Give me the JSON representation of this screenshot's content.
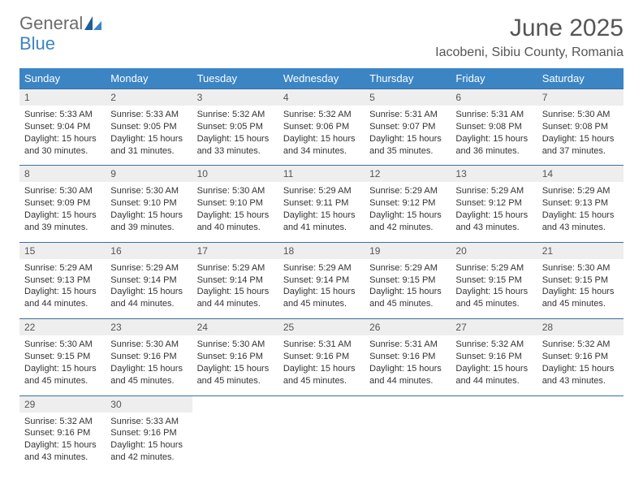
{
  "logo": {
    "general": "General",
    "blue": "Blue"
  },
  "title": "June 2025",
  "location": "Iacobeni, Sibiu County, Romania",
  "colors": {
    "header_bg": "#3b85c4",
    "header_text": "#ffffff",
    "daynum_bg": "#eeeeee",
    "border": "#3b6fa0",
    "text": "#333333",
    "title_text": "#555555",
    "logo_gray": "#6b6b6b",
    "logo_blue": "#3b85c4",
    "background": "#ffffff"
  },
  "day_headers": [
    "Sunday",
    "Monday",
    "Tuesday",
    "Wednesday",
    "Thursday",
    "Friday",
    "Saturday"
  ],
  "weeks": [
    [
      {
        "num": "1",
        "sunrise": "Sunrise: 5:33 AM",
        "sunset": "Sunset: 9:04 PM",
        "daylight1": "Daylight: 15 hours",
        "daylight2": "and 30 minutes."
      },
      {
        "num": "2",
        "sunrise": "Sunrise: 5:33 AM",
        "sunset": "Sunset: 9:05 PM",
        "daylight1": "Daylight: 15 hours",
        "daylight2": "and 31 minutes."
      },
      {
        "num": "3",
        "sunrise": "Sunrise: 5:32 AM",
        "sunset": "Sunset: 9:05 PM",
        "daylight1": "Daylight: 15 hours",
        "daylight2": "and 33 minutes."
      },
      {
        "num": "4",
        "sunrise": "Sunrise: 5:32 AM",
        "sunset": "Sunset: 9:06 PM",
        "daylight1": "Daylight: 15 hours",
        "daylight2": "and 34 minutes."
      },
      {
        "num": "5",
        "sunrise": "Sunrise: 5:31 AM",
        "sunset": "Sunset: 9:07 PM",
        "daylight1": "Daylight: 15 hours",
        "daylight2": "and 35 minutes."
      },
      {
        "num": "6",
        "sunrise": "Sunrise: 5:31 AM",
        "sunset": "Sunset: 9:08 PM",
        "daylight1": "Daylight: 15 hours",
        "daylight2": "and 36 minutes."
      },
      {
        "num": "7",
        "sunrise": "Sunrise: 5:30 AM",
        "sunset": "Sunset: 9:08 PM",
        "daylight1": "Daylight: 15 hours",
        "daylight2": "and 37 minutes."
      }
    ],
    [
      {
        "num": "8",
        "sunrise": "Sunrise: 5:30 AM",
        "sunset": "Sunset: 9:09 PM",
        "daylight1": "Daylight: 15 hours",
        "daylight2": "and 39 minutes."
      },
      {
        "num": "9",
        "sunrise": "Sunrise: 5:30 AM",
        "sunset": "Sunset: 9:10 PM",
        "daylight1": "Daylight: 15 hours",
        "daylight2": "and 39 minutes."
      },
      {
        "num": "10",
        "sunrise": "Sunrise: 5:30 AM",
        "sunset": "Sunset: 9:10 PM",
        "daylight1": "Daylight: 15 hours",
        "daylight2": "and 40 minutes."
      },
      {
        "num": "11",
        "sunrise": "Sunrise: 5:29 AM",
        "sunset": "Sunset: 9:11 PM",
        "daylight1": "Daylight: 15 hours",
        "daylight2": "and 41 minutes."
      },
      {
        "num": "12",
        "sunrise": "Sunrise: 5:29 AM",
        "sunset": "Sunset: 9:12 PM",
        "daylight1": "Daylight: 15 hours",
        "daylight2": "and 42 minutes."
      },
      {
        "num": "13",
        "sunrise": "Sunrise: 5:29 AM",
        "sunset": "Sunset: 9:12 PM",
        "daylight1": "Daylight: 15 hours",
        "daylight2": "and 43 minutes."
      },
      {
        "num": "14",
        "sunrise": "Sunrise: 5:29 AM",
        "sunset": "Sunset: 9:13 PM",
        "daylight1": "Daylight: 15 hours",
        "daylight2": "and 43 minutes."
      }
    ],
    [
      {
        "num": "15",
        "sunrise": "Sunrise: 5:29 AM",
        "sunset": "Sunset: 9:13 PM",
        "daylight1": "Daylight: 15 hours",
        "daylight2": "and 44 minutes."
      },
      {
        "num": "16",
        "sunrise": "Sunrise: 5:29 AM",
        "sunset": "Sunset: 9:14 PM",
        "daylight1": "Daylight: 15 hours",
        "daylight2": "and 44 minutes."
      },
      {
        "num": "17",
        "sunrise": "Sunrise: 5:29 AM",
        "sunset": "Sunset: 9:14 PM",
        "daylight1": "Daylight: 15 hours",
        "daylight2": "and 44 minutes."
      },
      {
        "num": "18",
        "sunrise": "Sunrise: 5:29 AM",
        "sunset": "Sunset: 9:14 PM",
        "daylight1": "Daylight: 15 hours",
        "daylight2": "and 45 minutes."
      },
      {
        "num": "19",
        "sunrise": "Sunrise: 5:29 AM",
        "sunset": "Sunset: 9:15 PM",
        "daylight1": "Daylight: 15 hours",
        "daylight2": "and 45 minutes."
      },
      {
        "num": "20",
        "sunrise": "Sunrise: 5:29 AM",
        "sunset": "Sunset: 9:15 PM",
        "daylight1": "Daylight: 15 hours",
        "daylight2": "and 45 minutes."
      },
      {
        "num": "21",
        "sunrise": "Sunrise: 5:30 AM",
        "sunset": "Sunset: 9:15 PM",
        "daylight1": "Daylight: 15 hours",
        "daylight2": "and 45 minutes."
      }
    ],
    [
      {
        "num": "22",
        "sunrise": "Sunrise: 5:30 AM",
        "sunset": "Sunset: 9:15 PM",
        "daylight1": "Daylight: 15 hours",
        "daylight2": "and 45 minutes."
      },
      {
        "num": "23",
        "sunrise": "Sunrise: 5:30 AM",
        "sunset": "Sunset: 9:16 PM",
        "daylight1": "Daylight: 15 hours",
        "daylight2": "and 45 minutes."
      },
      {
        "num": "24",
        "sunrise": "Sunrise: 5:30 AM",
        "sunset": "Sunset: 9:16 PM",
        "daylight1": "Daylight: 15 hours",
        "daylight2": "and 45 minutes."
      },
      {
        "num": "25",
        "sunrise": "Sunrise: 5:31 AM",
        "sunset": "Sunset: 9:16 PM",
        "daylight1": "Daylight: 15 hours",
        "daylight2": "and 45 minutes."
      },
      {
        "num": "26",
        "sunrise": "Sunrise: 5:31 AM",
        "sunset": "Sunset: 9:16 PM",
        "daylight1": "Daylight: 15 hours",
        "daylight2": "and 44 minutes."
      },
      {
        "num": "27",
        "sunrise": "Sunrise: 5:32 AM",
        "sunset": "Sunset: 9:16 PM",
        "daylight1": "Daylight: 15 hours",
        "daylight2": "and 44 minutes."
      },
      {
        "num": "28",
        "sunrise": "Sunrise: 5:32 AM",
        "sunset": "Sunset: 9:16 PM",
        "daylight1": "Daylight: 15 hours",
        "daylight2": "and 43 minutes."
      }
    ],
    [
      {
        "num": "29",
        "sunrise": "Sunrise: 5:32 AM",
        "sunset": "Sunset: 9:16 PM",
        "daylight1": "Daylight: 15 hours",
        "daylight2": "and 43 minutes."
      },
      {
        "num": "30",
        "sunrise": "Sunrise: 5:33 AM",
        "sunset": "Sunset: 9:16 PM",
        "daylight1": "Daylight: 15 hours",
        "daylight2": "and 42 minutes."
      },
      null,
      null,
      null,
      null,
      null
    ]
  ]
}
